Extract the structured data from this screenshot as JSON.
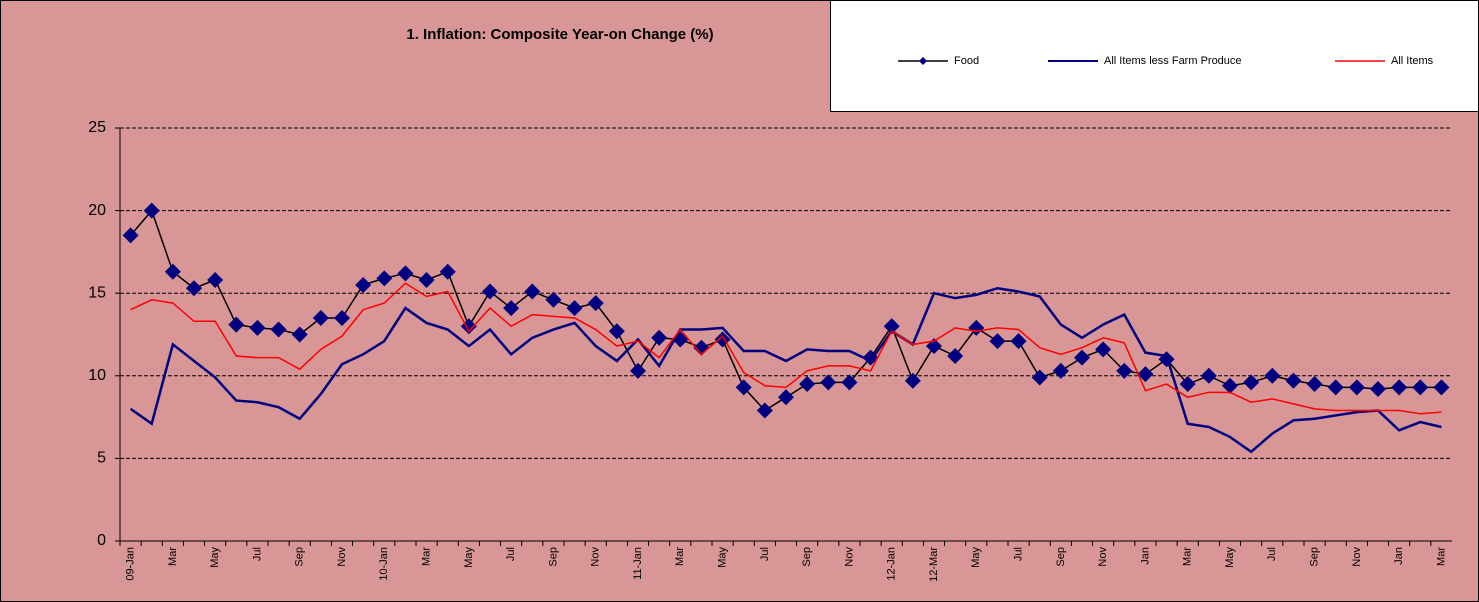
{
  "chart_data": {
    "type": "line",
    "title": "1. Inflation: Composite Year-on Change (%)",
    "categories": [
      "09-Jan",
      null,
      "Mar",
      null,
      "May",
      null,
      "Jul",
      null,
      "Sep",
      null,
      "Nov",
      null,
      "10-Jan",
      null,
      "Mar",
      null,
      "May",
      null,
      "Jul",
      null,
      "Sep",
      null,
      "Nov",
      null,
      "11-Jan",
      null,
      "Mar",
      null,
      "May",
      null,
      "Jul",
      null,
      "Sep",
      null,
      "Nov",
      null,
      "12-Jan",
      null,
      "12-Mar",
      null,
      "May",
      null,
      "Jul",
      null,
      "Sep",
      null,
      "Nov",
      null,
      "Jan",
      null,
      "Mar",
      null,
      "May",
      null,
      "Jul",
      null,
      "Sep",
      null,
      "Nov",
      null,
      "Jan",
      null,
      "Mar"
    ],
    "series": [
      {
        "name": "Food",
        "color": "#000080",
        "line_color": "#000000",
        "markers": true,
        "values": [
          18.5,
          20,
          16.3,
          15.3,
          15.8,
          13.1,
          12.9,
          12.8,
          12.5,
          13.5,
          13.5,
          15.5,
          15.9,
          16.2,
          15.8,
          16.3,
          13,
          15.1,
          14.1,
          15.1,
          14.6,
          14.1,
          14.4,
          12.7,
          10.3,
          12.3,
          12.2,
          11.7,
          12.2,
          9.3,
          7.9,
          8.7,
          9.5,
          9.6,
          9.6,
          11.1,
          13,
          9.7,
          11.8,
          11.2,
          12.9,
          12.1,
          12.1,
          9.9,
          10.3,
          11.1,
          11.6,
          10.3,
          10.1,
          11,
          9.5,
          10,
          9.4,
          9.6,
          10,
          9.7,
          9.5,
          9.3,
          9.3,
          9.2,
          9.3,
          9.3,
          9.3
        ]
      },
      {
        "name": "All Items less Farm Produce",
        "color": "#000080",
        "values": [
          8,
          7.1,
          11.9,
          10.9,
          9.9,
          8.5,
          8.4,
          8.1,
          7.4,
          8.9,
          10.7,
          11.3,
          12.1,
          14.1,
          13.2,
          12.8,
          11.8,
          12.8,
          11.3,
          12.3,
          12.8,
          13.2,
          11.8,
          10.9,
          12.2,
          10.6,
          12.8,
          12.8,
          12.9,
          11.5,
          11.5,
          10.9,
          11.6,
          11.5,
          11.5,
          10.9,
          12.7,
          11.9,
          15,
          14.7,
          14.9,
          15.3,
          15.1,
          14.8,
          13.1,
          12.3,
          13.1,
          13.7,
          11.4,
          11.2,
          7.1,
          6.9,
          6.3,
          5.4,
          6.5,
          7.3,
          7.4,
          7.6,
          7.8,
          7.9,
          6.7,
          7.2,
          6.9
        ]
      },
      {
        "name": "All Items",
        "color": "#ff0000",
        "values": [
          14,
          14.6,
          14.4,
          13.3,
          13.3,
          11.2,
          11.1,
          11.1,
          10.4,
          11.6,
          12.4,
          14,
          14.4,
          15.6,
          14.8,
          15.1,
          12.7,
          14.1,
          13,
          13.7,
          13.6,
          13.5,
          12.8,
          11.8,
          12.1,
          11.1,
          12.8,
          11.3,
          12.4,
          10.2,
          9.4,
          9.3,
          10.3,
          10.6,
          10.6,
          10.3,
          12.7,
          11.9,
          12.1,
          12.9,
          12.7,
          12.9,
          12.8,
          11.7,
          11.3,
          11.7,
          12.3,
          12,
          9.1,
          9.5,
          8.7,
          9,
          9,
          8.4,
          8.6,
          8.3,
          8,
          7.9,
          7.9,
          7.9,
          7.9,
          7.7,
          7.8
        ]
      }
    ],
    "ylim": [
      0,
      25
    ],
    "yticks": [
      0,
      5,
      10,
      15,
      20,
      25
    ],
    "grid": true,
    "legend": "top-right"
  }
}
